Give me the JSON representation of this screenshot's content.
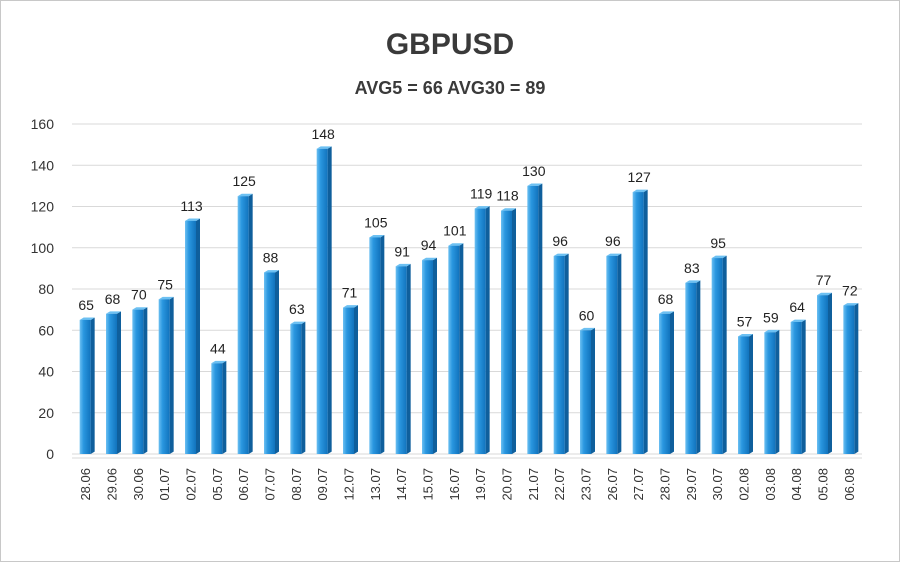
{
  "chart_data": {
    "type": "bar",
    "title": "GBPUSD",
    "subtitle": "AVG5 = 66 AVG30 = 89",
    "categories": [
      "28.06",
      "29.06",
      "30.06",
      "01.07",
      "02.07",
      "05.07",
      "06.07",
      "07.07",
      "08.07",
      "09.07",
      "12.07",
      "13.07",
      "14.07",
      "15.07",
      "16.07",
      "19.07",
      "20.07",
      "21.07",
      "22.07",
      "23.07",
      "26.07",
      "27.07",
      "28.07",
      "29.07",
      "30.07",
      "02.08",
      "03.08",
      "04.08",
      "05.08",
      "06.08"
    ],
    "values": [
      65,
      68,
      70,
      75,
      113,
      44,
      125,
      88,
      63,
      148,
      71,
      105,
      91,
      94,
      101,
      119,
      118,
      130,
      96,
      60,
      96,
      127,
      68,
      83,
      95,
      57,
      59,
      64,
      77,
      72
    ],
    "ylim": [
      0,
      160
    ],
    "yticks": [
      0,
      20,
      40,
      60,
      80,
      100,
      120,
      140,
      160
    ],
    "grid": true,
    "colors": {
      "bar": "#1f8ad6",
      "bar_dark": "#0f5f9c",
      "bar_light": "#6cc0f2",
      "grid": "#d9d9d9"
    }
  }
}
